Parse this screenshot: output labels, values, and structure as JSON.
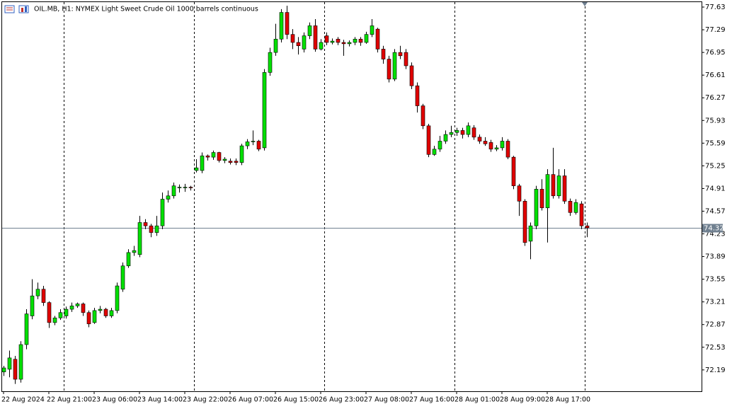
{
  "chart_data": {
    "type": "candlestick",
    "title": "OIL.MB, H1:  NYMEX Light Sweet Crude Oil 1000 barrels continuous",
    "categories": [
      "22 Aug 2024",
      null,
      null,
      null,
      null,
      null,
      null,
      null,
      "22 Aug 21:00",
      null,
      null,
      null,
      null,
      null,
      null,
      null,
      "23 Aug 06:00",
      null,
      null,
      null,
      null,
      null,
      null,
      null,
      "23 Aug 14:00",
      null,
      null,
      null,
      null,
      null,
      null,
      null,
      "23 Aug 22:00",
      null,
      null,
      null,
      null,
      null,
      null,
      null,
      "26 Aug 07:00",
      null,
      null,
      null,
      null,
      null,
      null,
      null,
      "26 Aug 15:00",
      null,
      null,
      null,
      null,
      null,
      null,
      null,
      "26 Aug 23:00",
      null,
      null,
      null,
      null,
      null,
      null,
      null,
      "27 Aug 08:00",
      null,
      null,
      null,
      null,
      null,
      null,
      null,
      "27 Aug 16:00",
      null,
      null,
      null,
      null,
      null,
      null,
      null,
      "28 Aug 01:00",
      null,
      null,
      null,
      null,
      null,
      null,
      null,
      "28 Aug 09:00",
      null,
      null,
      null,
      null,
      null,
      null,
      null,
      "28 Aug 17:00",
      null,
      null,
      null,
      null,
      null,
      null,
      null
    ],
    "open": [
      72.16,
      72.2,
      72.35,
      72.05,
      72.57,
      73.0,
      73.3,
      73.4,
      73.2,
      72.9,
      72.97,
      73.0,
      73.1,
      73.15,
      73.18,
      73.05,
      72.9,
      73.08,
      73.1,
      73.0,
      73.08,
      73.4,
      73.75,
      73.95,
      73.92,
      74.4,
      74.35,
      74.25,
      74.35,
      74.75,
      74.8,
      74.92,
      74.92,
      74.93,
      75.18,
      75.18,
      75.4,
      75.38,
      75.45,
      75.33,
      75.32,
      75.32,
      75.3,
      75.55,
      75.61,
      75.62,
      75.52,
      76.65,
      76.95,
      77.15,
      77.55,
      77.22,
      77.1,
      77.0,
      77.2,
      77.35,
      77.0,
      77.2,
      77.1,
      77.15,
      77.1,
      77.08,
      77.1,
      77.15,
      77.1,
      77.22,
      77.3,
      77.0,
      76.85,
      76.55,
      76.95,
      76.95,
      76.75,
      76.45,
      76.15,
      75.85,
      75.42,
      75.5,
      75.62,
      75.72,
      75.75,
      75.78,
      75.72,
      75.82,
      75.68,
      75.62,
      75.6,
      75.5,
      75.52,
      75.62,
      75.38,
      74.95,
      74.72,
      74.12,
      74.35,
      74.9,
      74.62,
      75.12,
      74.8,
      75.1,
      74.72,
      74.55,
      74.68,
      74.35
    ],
    "high": [
      72.25,
      72.48,
      72.4,
      72.62,
      73.1,
      73.55,
      73.5,
      73.45,
      73.22,
      73.0,
      73.1,
      73.14,
      73.2,
      73.2,
      73.2,
      73.08,
      73.12,
      73.15,
      73.12,
      73.12,
      73.5,
      73.8,
      74.0,
      74.05,
      74.5,
      74.45,
      74.38,
      74.5,
      74.85,
      74.88,
      75.0,
      74.97,
      74.98,
      74.95,
      75.35,
      75.45,
      75.42,
      75.48,
      75.46,
      75.38,
      75.36,
      75.36,
      75.58,
      75.65,
      75.78,
      75.64,
      76.7,
      77.02,
      77.38,
      77.6,
      77.65,
      77.3,
      77.18,
      77.25,
      77.4,
      77.45,
      77.15,
      77.25,
      77.16,
      77.18,
      77.14,
      77.13,
      77.18,
      77.18,
      77.26,
      77.45,
      77.32,
      77.05,
      76.9,
      77.0,
      77.05,
      77.0,
      76.8,
      76.5,
      76.18,
      75.88,
      75.55,
      75.7,
      75.78,
      75.85,
      75.82,
      75.82,
      75.9,
      75.86,
      75.72,
      75.68,
      75.64,
      75.56,
      75.68,
      75.65,
      75.4,
      74.98,
      74.75,
      74.4,
      74.95,
      75.05,
      75.2,
      75.52,
      75.2,
      75.2,
      74.76,
      74.75,
      74.72,
      74.4
    ],
    "low": [
      72.1,
      72.08,
      71.98,
      72.0,
      72.5,
      72.95,
      73.25,
      73.15,
      72.82,
      72.86,
      72.94,
      72.96,
      73.06,
      73.12,
      73.0,
      72.83,
      72.88,
      73.04,
      72.97,
      72.97,
      73.04,
      73.36,
      73.72,
      73.9,
      73.88,
      74.3,
      74.18,
      74.2,
      74.3,
      74.7,
      74.76,
      74.85,
      74.86,
      74.88,
      75.15,
      75.14,
      75.33,
      75.34,
      75.3,
      75.29,
      75.27,
      75.26,
      75.26,
      75.5,
      75.56,
      75.47,
      75.48,
      76.6,
      76.9,
      77.1,
      77.15,
      77.0,
      76.92,
      76.95,
      77.15,
      76.96,
      76.98,
      77.06,
      77.07,
      77.06,
      76.9,
      77.04,
      77.06,
      77.05,
      77.08,
      77.18,
      76.95,
      76.78,
      76.5,
      76.52,
      76.85,
      76.7,
      76.4,
      76.05,
      75.8,
      75.38,
      75.4,
      75.46,
      75.58,
      75.68,
      75.7,
      75.66,
      75.68,
      75.64,
      75.58,
      75.55,
      75.46,
      75.47,
      75.48,
      75.35,
      74.9,
      74.5,
      74.05,
      73.85,
      74.3,
      74.58,
      74.1,
      74.76,
      74.76,
      74.68,
      74.5,
      74.52,
      74.3,
      74.18
    ],
    "close": [
      72.22,
      72.37,
      72.05,
      72.57,
      73.03,
      73.3,
      73.4,
      73.2,
      72.9,
      72.97,
      73.05,
      73.1,
      73.15,
      73.18,
      73.05,
      72.88,
      73.08,
      73.1,
      73.0,
      73.08,
      73.45,
      73.75,
      73.95,
      73.98,
      74.4,
      74.35,
      74.25,
      74.35,
      74.75,
      74.8,
      74.95,
      74.93,
      74.93,
      74.92,
      75.22,
      75.4,
      75.38,
      75.45,
      75.33,
      75.35,
      75.3,
      75.3,
      75.55,
      75.61,
      75.62,
      75.5,
      76.65,
      76.95,
      77.15,
      77.55,
      77.22,
      77.1,
      77.05,
      77.2,
      77.35,
      77.0,
      77.1,
      77.1,
      77.12,
      77.1,
      77.08,
      77.1,
      77.15,
      77.1,
      77.22,
      77.35,
      77.0,
      76.85,
      76.55,
      76.95,
      76.9,
      76.75,
      76.45,
      76.15,
      75.85,
      75.42,
      75.5,
      75.62,
      75.72,
      75.75,
      75.78,
      75.72,
      75.85,
      75.68,
      75.62,
      75.58,
      75.5,
      75.52,
      75.62,
      75.38,
      74.95,
      74.72,
      74.1,
      74.35,
      74.9,
      74.62,
      75.12,
      74.8,
      75.1,
      74.72,
      74.55,
      74.7,
      74.35,
      74.32
    ],
    "current_price": 74.32,
    "ylim": [
      71.87,
      77.715
    ],
    "yticks": [
      77.63,
      77.29,
      76.95,
      76.61,
      76.27,
      75.93,
      75.59,
      75.25,
      74.91,
      74.57,
      74.23,
      73.89,
      73.55,
      73.21,
      72.87,
      72.53,
      72.19
    ],
    "bull_color": "#00e000",
    "bear_color": "#e00000",
    "wick_color": "#000000",
    "price_line_color": "#708090"
  }
}
